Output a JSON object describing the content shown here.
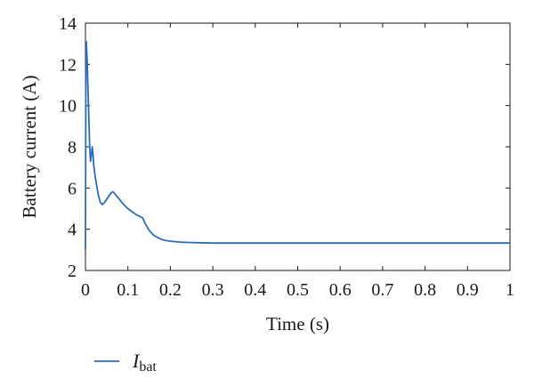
{
  "chart_data": {
    "type": "line",
    "xlabel": "Time (s)",
    "ylabel": "Battery current (A)",
    "xlim": [
      0,
      1
    ],
    "ylim": [
      2,
      14
    ],
    "x_ticks": [
      0,
      0.1,
      0.2,
      0.3,
      0.4,
      0.5,
      0.6,
      0.7,
      0.8,
      0.9,
      1
    ],
    "x_tick_labels": [
      "0",
      "0.1",
      "0.2",
      "0.3",
      "0.4",
      "0.5",
      "0.6",
      "0.7",
      "0.8",
      "0.9",
      "1"
    ],
    "y_ticks": [
      2,
      4,
      6,
      8,
      10,
      12,
      14
    ],
    "y_tick_labels": [
      "2",
      "4",
      "6",
      "8",
      "10",
      "12",
      "14"
    ],
    "grid": false,
    "legend_position": "below-left",
    "series": [
      {
        "name": "I",
        "name_subscript": "bat",
        "color": "#2b6cb8",
        "x": [
          0.0,
          0.001,
          0.002,
          0.004,
          0.006,
          0.008,
          0.01,
          0.012,
          0.014,
          0.016,
          0.018,
          0.02,
          0.022,
          0.025,
          0.03,
          0.035,
          0.04,
          0.045,
          0.05,
          0.055,
          0.06,
          0.065,
          0.07,
          0.08,
          0.09,
          0.1,
          0.11,
          0.12,
          0.13,
          0.135,
          0.14,
          0.15,
          0.16,
          0.17,
          0.18,
          0.19,
          0.2,
          0.22,
          0.24,
          0.26,
          0.28,
          0.3,
          0.35,
          0.4,
          0.5,
          0.6,
          0.7,
          0.8,
          0.9,
          1.0
        ],
        "y": [
          3.0,
          11.5,
          13.1,
          12.2,
          10.8,
          9.4,
          8.0,
          7.3,
          7.6,
          8.0,
          7.6,
          7.0,
          6.7,
          6.3,
          5.7,
          5.3,
          5.2,
          5.3,
          5.45,
          5.6,
          5.75,
          5.82,
          5.7,
          5.45,
          5.2,
          5.0,
          4.85,
          4.7,
          4.6,
          4.55,
          4.3,
          3.95,
          3.72,
          3.6,
          3.5,
          3.45,
          3.42,
          3.38,
          3.36,
          3.35,
          3.34,
          3.33,
          3.33,
          3.33,
          3.33,
          3.33,
          3.33,
          3.33,
          3.33,
          3.33
        ]
      }
    ]
  }
}
